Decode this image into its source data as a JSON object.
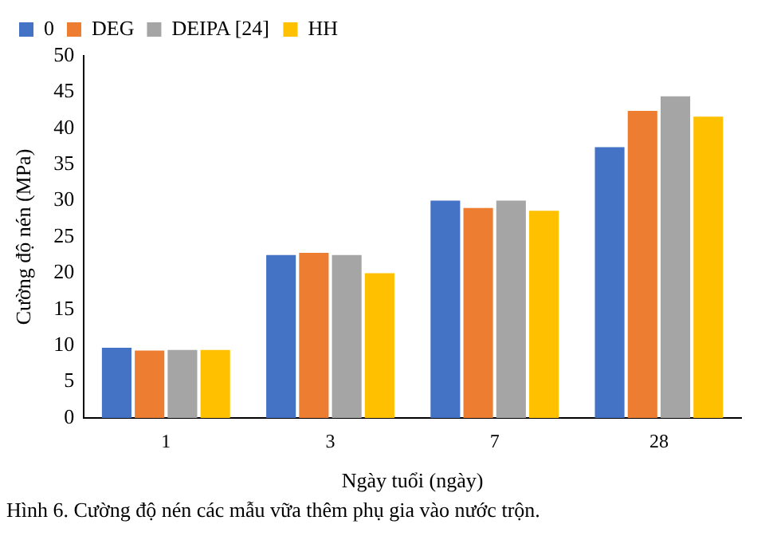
{
  "chart_data": {
    "type": "bar",
    "xlabel": "Ngày tuổi (ngày)",
    "ylabel": "Cường độ nén (MPa)",
    "categories": [
      "1",
      "3",
      "7",
      "28"
    ],
    "series": [
      {
        "name": "0",
        "color": "#4472c4",
        "values": [
          9.7,
          22.5,
          30,
          37.4
        ]
      },
      {
        "name": "DEG",
        "color": "#ed7d31",
        "values": [
          9.3,
          22.8,
          29,
          42.4
        ]
      },
      {
        "name": "DEIPA [24]",
        "color": "#a5a5a5",
        "values": [
          9.4,
          22.5,
          30,
          44.4
        ]
      },
      {
        "name": "HH",
        "color": "#ffc000",
        "values": [
          9.4,
          20,
          28.6,
          41.6
        ]
      }
    ],
    "ylim": [
      0,
      50
    ],
    "yticks": [
      0,
      5,
      10,
      15,
      20,
      25,
      30,
      35,
      40,
      45,
      50
    ],
    "grid": false,
    "legend": "top left",
    "annotations": [
      "Hình 6. Cường độ nén các mẫu vữa thêm phụ gia vào nước trộn."
    ]
  }
}
